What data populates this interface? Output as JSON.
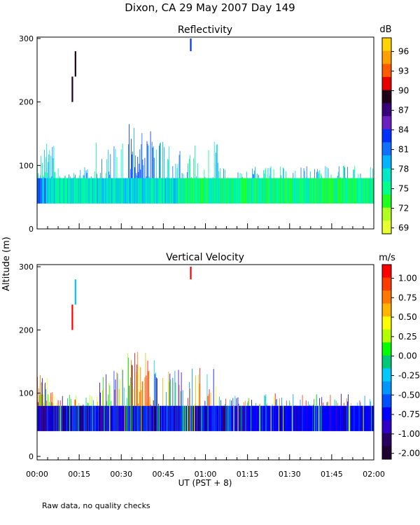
{
  "title": "Dixon, CA 29 May 2007  Day 149",
  "ylabel": "Altitude (m)",
  "xlabel": "UT  (PST + 8)",
  "footnote": "Raw data, no quality checks",
  "x_ticks": [
    "00:00",
    "00:15",
    "00:30",
    "00:45",
    "01:00",
    "01:15",
    "01:30",
    "01:45",
    "02:00"
  ],
  "x_range_minutes": [
    0,
    120
  ],
  "chart_data": [
    {
      "type": "heatmap",
      "title": "Reflectivity",
      "units": "dB",
      "xlabel": "UT  (PST + 8)",
      "ylabel": "Altitude (m)",
      "ylim": [
        0,
        300
      ],
      "y_ticks": [
        0,
        100,
        200,
        300
      ],
      "colorbar_ticks": [
        "96",
        "93",
        "90",
        "87",
        "84",
        "81",
        "78",
        "75",
        "72",
        "69"
      ],
      "colorbar_colors": [
        "#ffd400",
        "#ffa000",
        "#ff5a00",
        "#e80000",
        "#200018",
        "#38007a",
        "#6a20c0",
        "#0030ff",
        "#1070ff",
        "#00b4ff",
        "#00e8c8",
        "#00ff8c",
        "#20ff20",
        "#b0ff20",
        "#e8ff30"
      ],
      "features": [
        {
          "label": "echo layer",
          "x_range_minutes": [
            0,
            120
          ],
          "y_range_m": [
            40,
            80
          ]
        },
        {
          "label": "insect plume",
          "x_range_minutes": [
            32,
            42
          ],
          "y_range_m": [
            40,
            180
          ]
        },
        {
          "label": "isolated echoes",
          "x_minutes": [
            12.3,
            13.7,
            54.5
          ],
          "y_range_m": [
            200,
            300
          ]
        }
      ]
    },
    {
      "type": "heatmap",
      "title": "Vertical Velocity",
      "units": "m/s",
      "xlabel": "UT  (PST + 8)",
      "ylabel": "Altitude (m)",
      "ylim": [
        0,
        300
      ],
      "y_ticks": [
        0,
        100,
        200,
        300
      ],
      "colorbar_ticks": [
        "1.00",
        "0.75",
        "0.50",
        "0.25",
        "0.00",
        "-0.25",
        "-0.50",
        "-0.75",
        "-1.00",
        "-2.00"
      ],
      "colorbar_colors": [
        "#ff0000",
        "#ff3c00",
        "#ff7800",
        "#ffb400",
        "#ffff00",
        "#b4ff00",
        "#00ff00",
        "#00c878",
        "#00c8ff",
        "#0096ff",
        "#0050ff",
        "#0000ff",
        "#3000c8",
        "#280060",
        "#1e0030"
      ],
      "features": [
        {
          "label": "downward motion layer",
          "x_range_minutes": [
            0,
            120
          ],
          "y_range_m": [
            40,
            80
          ]
        },
        {
          "label": "updraft streaks",
          "x_range_minutes": [
            34,
            41
          ],
          "y_range_m": [
            40,
            180
          ]
        },
        {
          "label": "isolated echoes",
          "x_minutes": [
            12.3,
            13.7,
            54.5
          ],
          "y_range_m": [
            200,
            300
          ]
        }
      ]
    }
  ]
}
